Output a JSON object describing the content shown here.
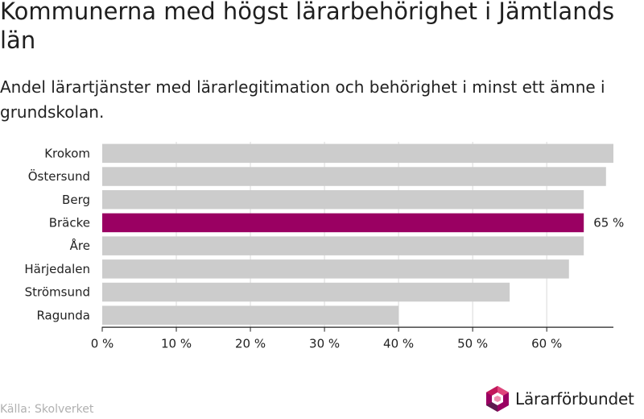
{
  "title": "Kommunerna med högst lärarbehörighet i Jämtlands län",
  "subtitle": "Andel lärartjänster med lärarlegitimation och behörighet i minst ett ämne i grundskolan.",
  "source": "Källa: Skolverket",
  "logo": {
    "text": "Lärarförbundet",
    "icon": "lararforbundet-hexagon-icon"
  },
  "colors": {
    "bar": "#cccccc",
    "highlight": "#9a0062",
    "grid": "#d9d9d9",
    "axis": "#222222"
  },
  "chart_data": {
    "type": "bar",
    "orientation": "horizontal",
    "categories": [
      "Krokom",
      "Östersund",
      "Berg",
      "Bräcke",
      "Åre",
      "Härjedalen",
      "Strömsund",
      "Ragunda"
    ],
    "values": [
      69,
      68,
      65,
      65,
      65,
      63,
      55,
      40
    ],
    "highlight": {
      "category": "Bräcke",
      "label": "65 %"
    },
    "xlim": [
      0,
      69
    ],
    "xticks": [
      0,
      10,
      20,
      30,
      40,
      50,
      60
    ],
    "xtick_labels": [
      "0 %",
      "10 %",
      "20 %",
      "30 %",
      "40 %",
      "50 %",
      "60 %"
    ],
    "grid": true
  }
}
